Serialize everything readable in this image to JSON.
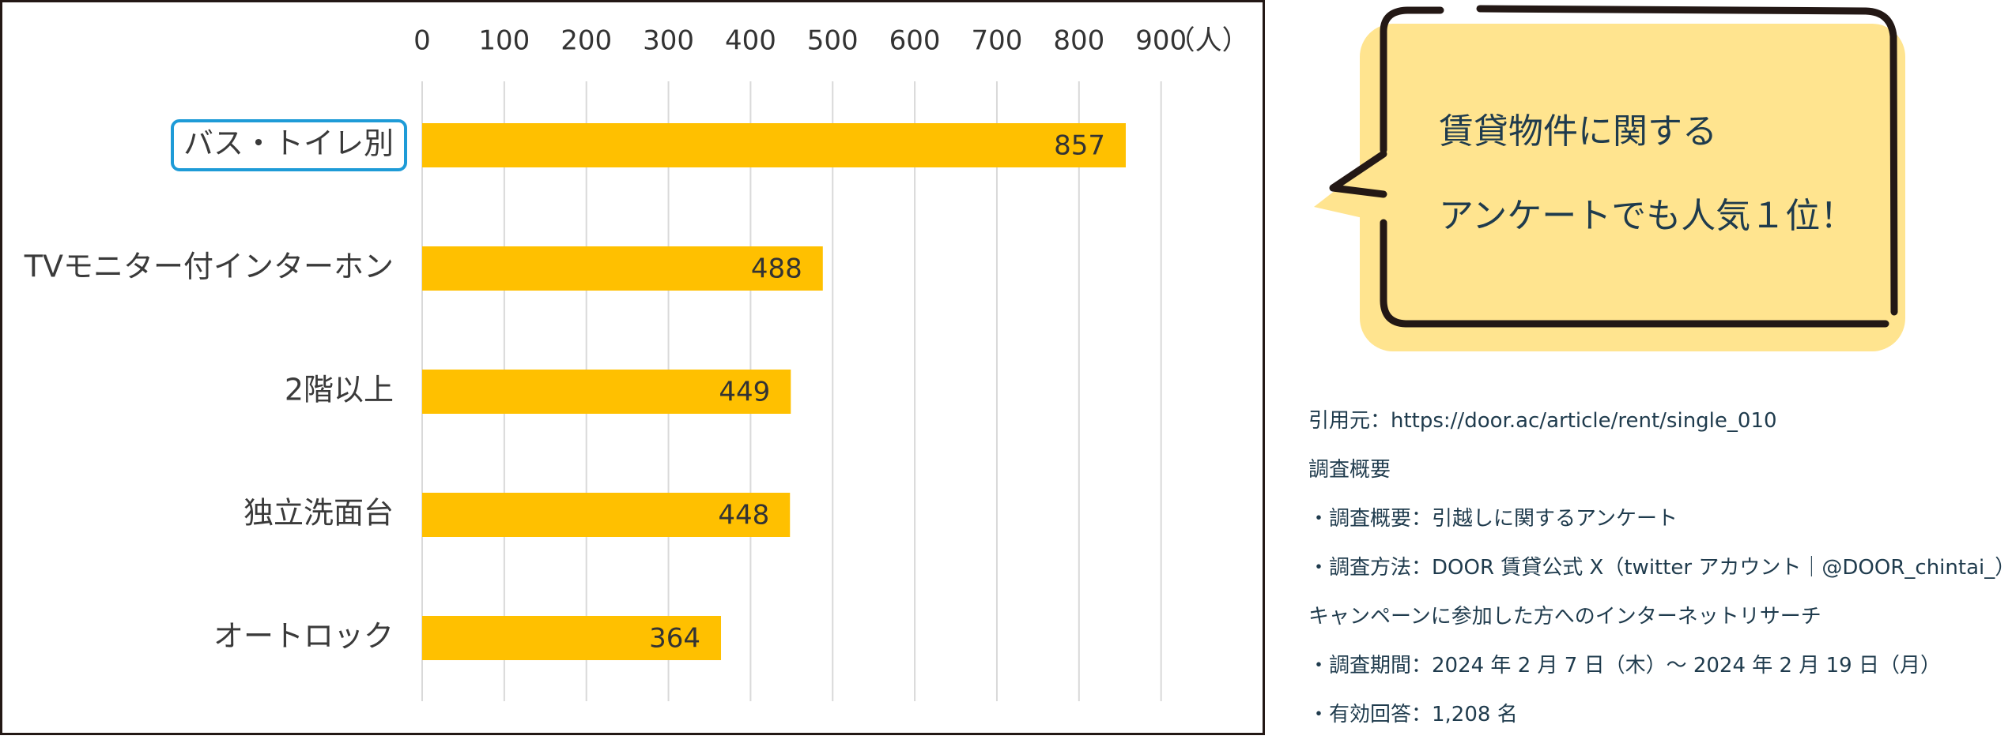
{
  "chart_data": {
    "type": "bar",
    "orientation": "horizontal",
    "categories": [
      "バス・トイレ別",
      "TVモニター付インターホン",
      "2階以上",
      "独立洗面台",
      "オートロック"
    ],
    "values": [
      857,
      488,
      449,
      448,
      364
    ],
    "x_ticks": [
      0,
      100,
      200,
      300,
      400,
      500,
      600,
      700,
      800,
      900
    ],
    "x_unit": "（人）",
    "xlim": [
      0,
      950
    ],
    "bar_color": "#FFC000",
    "grid": true,
    "highlight_category_index": 0,
    "highlight_color": "#1E9BD7"
  },
  "callout": {
    "line1": "賃貸物件に関する",
    "line2": "アンケートでも人気１位！",
    "fill_color": "#FFE48F",
    "stroke_color": "#231815"
  },
  "notes": {
    "lines": [
      "引用元：https://door.ac/article/rent/single_010",
      "調査概要",
      "・調査概要：引越しに関するアンケート",
      "・調査方法：DOOR 賃貸公式 X（twitter アカウント｜@DOOR_chintai_）の",
      "キャンペーンに参加した方へのインターネットリサーチ",
      "・調査期間：2024 年 2 月 7 日（木）～ 2024 年 2 月 19 日（月）",
      "・有効回答：1,208 名"
    ]
  }
}
